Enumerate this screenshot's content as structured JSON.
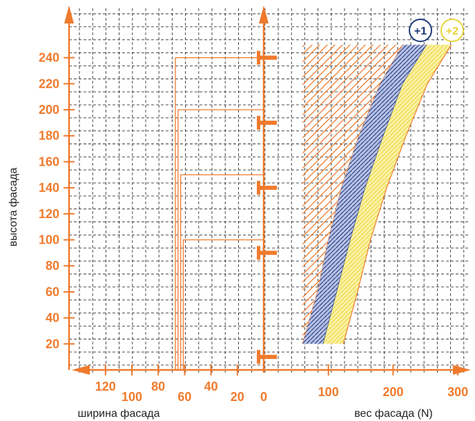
{
  "colors": {
    "accent": "#f07a2c",
    "grid": "#333333",
    "navy": "#1f3a7a",
    "yellow": "#e9d43a",
    "yellow_fill": "#fbf2a6",
    "blue_fill": "#b7c0e6",
    "text": "#222222"
  },
  "axes": {
    "y_title": "высота фасада",
    "left_x_title": "ширина фасада",
    "right_x_title": "вес фасада (N)",
    "y_ticks": [
      "20",
      "40",
      "60",
      "80",
      "100",
      "120",
      "140",
      "160",
      "180",
      "200",
      "220",
      "240"
    ],
    "left_x_ticks": [
      "120",
      "100",
      "80",
      "60",
      "40",
      "20",
      "0"
    ],
    "right_x_ticks": [
      "100",
      "200",
      "300"
    ]
  },
  "badges": [
    {
      "label": "+1",
      "color": "#1f3a7a"
    },
    {
      "label": "+2",
      "color": "#e9d43a"
    }
  ],
  "chart_data": {
    "type": "area",
    "xlabel": "вес фасада (N)",
    "ylabel": "высота фасада",
    "ylim": [
      0,
      260
    ],
    "xlim": [
      0,
      300
    ],
    "grid": true,
    "width_rectangles": [
      {
        "height_max": 240,
        "width": 67
      },
      {
        "height_max": 200,
        "width": 65
      },
      {
        "height_max": 150,
        "width": 63
      },
      {
        "height_max": 100,
        "width": 61
      }
    ],
    "hinge_marker_heights": [
      10,
      90,
      140,
      190,
      240
    ],
    "zones": [
      {
        "name": "",
        "left": [
          [
            60,
            20
          ],
          [
            60,
            250
          ]
        ],
        "right": [
          [
            60,
            20
          ],
          [
            83,
            60
          ],
          [
            100,
            100
          ],
          [
            120,
            140
          ],
          [
            147,
            180
          ],
          [
            180,
            220
          ],
          [
            215,
            250
          ]
        ]
      },
      {
        "name": "+1",
        "left": [
          [
            60,
            20
          ],
          [
            83,
            60
          ],
          [
            100,
            100
          ],
          [
            120,
            140
          ],
          [
            147,
            180
          ],
          [
            180,
            220
          ],
          [
            215,
            250
          ]
        ],
        "right": [
          [
            92,
            20
          ],
          [
            113,
            60
          ],
          [
            134,
            100
          ],
          [
            157,
            140
          ],
          [
            185,
            180
          ],
          [
            215,
            220
          ],
          [
            252,
            250
          ]
        ]
      },
      {
        "name": "+2",
        "left": [
          [
            92,
            20
          ],
          [
            113,
            60
          ],
          [
            134,
            100
          ],
          [
            157,
            140
          ],
          [
            185,
            180
          ],
          [
            215,
            220
          ],
          [
            252,
            250
          ]
        ],
        "right": [
          [
            123,
            20
          ],
          [
            145,
            60
          ],
          [
            165,
            100
          ],
          [
            190,
            140
          ],
          [
            220,
            180
          ],
          [
            253,
            220
          ],
          [
            290,
            250
          ]
        ]
      }
    ]
  }
}
